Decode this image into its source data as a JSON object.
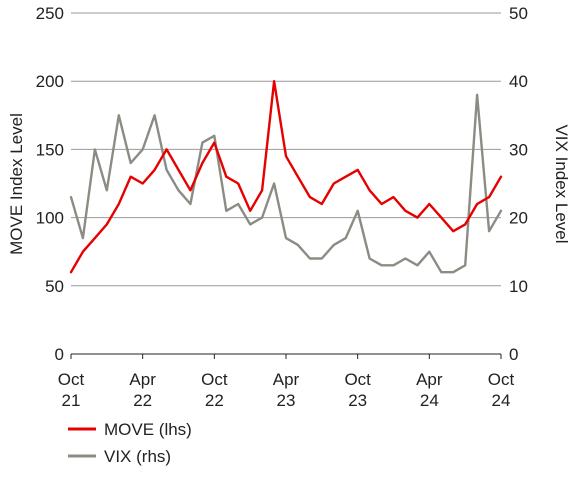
{
  "chart_data": {
    "type": "line",
    "title": "",
    "xlabel": "",
    "ylabel_left": "MOVE Index Level",
    "ylabel_right": "VIX Index Level",
    "ylim_left": [
      0,
      250
    ],
    "ylim_right": [
      0,
      50
    ],
    "yticks_left": [
      "0",
      "50",
      "100",
      "150",
      "200",
      "250"
    ],
    "yticks_right": [
      "0",
      "10",
      "20",
      "30",
      "40",
      "50"
    ],
    "xticks": [
      {
        "month": "Oct",
        "year": "21"
      },
      {
        "month": "Apr",
        "year": "22"
      },
      {
        "month": "Oct",
        "year": "22"
      },
      {
        "month": "Apr",
        "year": "23"
      },
      {
        "month": "Oct",
        "year": "23"
      },
      {
        "month": "Apr",
        "year": "24"
      },
      {
        "month": "Oct",
        "year": "24"
      }
    ],
    "grid": "horizontal",
    "legend_position": "bottom-left",
    "series": [
      {
        "name": "MOVE (lhs)",
        "axis": "left",
        "color": "#e60000",
        "x": [
          "2021-10",
          "2021-11",
          "2021-12",
          "2022-01",
          "2022-02",
          "2022-03",
          "2022-04",
          "2022-05",
          "2022-06",
          "2022-07",
          "2022-08",
          "2022-09",
          "2022-10",
          "2022-11",
          "2022-12",
          "2023-01",
          "2023-02",
          "2023-03",
          "2023-04",
          "2023-05",
          "2023-06",
          "2023-07",
          "2023-08",
          "2023-09",
          "2023-10",
          "2023-11",
          "2023-12",
          "2024-01",
          "2024-02",
          "2024-03",
          "2024-04",
          "2024-05",
          "2024-06",
          "2024-07",
          "2024-08",
          "2024-09",
          "2024-10"
        ],
        "values": [
          60,
          75,
          85,
          95,
          110,
          130,
          125,
          135,
          150,
          135,
          120,
          140,
          155,
          130,
          125,
          105,
          120,
          200,
          145,
          130,
          115,
          110,
          125,
          130,
          135,
          120,
          110,
          115,
          105,
          100,
          110,
          100,
          90,
          95,
          110,
          115,
          130
        ]
      },
      {
        "name": "VIX (rhs)",
        "axis": "right",
        "color": "#8c8c84",
        "x": [
          "2021-10",
          "2021-11",
          "2021-12",
          "2022-01",
          "2022-02",
          "2022-03",
          "2022-04",
          "2022-05",
          "2022-06",
          "2022-07",
          "2022-08",
          "2022-09",
          "2022-10",
          "2022-11",
          "2022-12",
          "2023-01",
          "2023-02",
          "2023-03",
          "2023-04",
          "2023-05",
          "2023-06",
          "2023-07",
          "2023-08",
          "2023-09",
          "2023-10",
          "2023-11",
          "2023-12",
          "2024-01",
          "2024-02",
          "2024-03",
          "2024-04",
          "2024-05",
          "2024-06",
          "2024-07",
          "2024-08",
          "2024-09",
          "2024-10"
        ],
        "values": [
          23,
          17,
          30,
          24,
          35,
          28,
          30,
          35,
          27,
          24,
          22,
          31,
          32,
          21,
          22,
          19,
          20,
          25,
          17,
          16,
          14,
          14,
          16,
          17,
          21,
          14,
          13,
          13,
          14,
          13,
          15,
          12,
          12,
          13,
          38,
          18,
          21
        ]
      }
    ]
  }
}
